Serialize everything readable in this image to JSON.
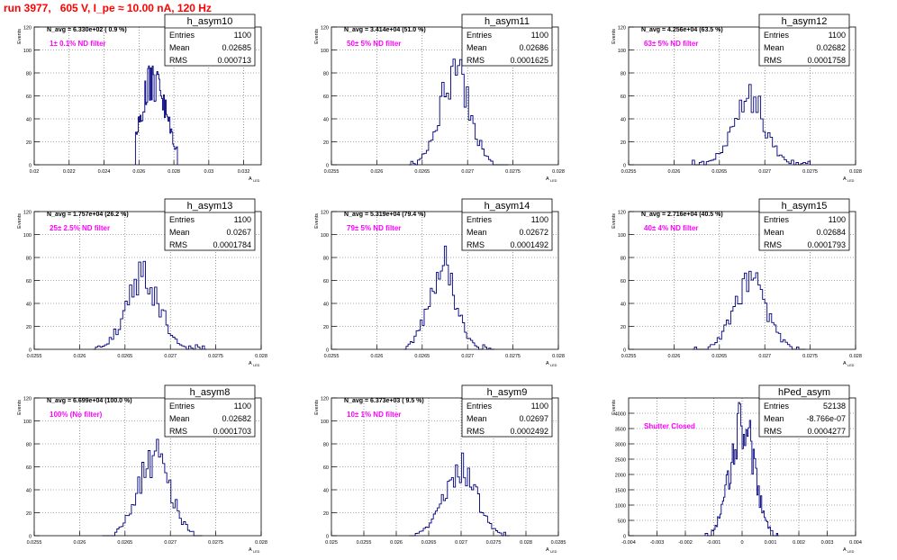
{
  "page_title": "run 3977,   605 V, I_pe ≈ 10.00 nA, 120 Hz",
  "colors": {
    "histogram": "#00007f",
    "annotation": "#ff00ff",
    "title": "#ff0000",
    "grid": "#555555"
  },
  "chart_data": [
    {
      "type": "bar",
      "name": "h_asym10",
      "ylabel": "Events",
      "xlabel": "A",
      "xlabel_sub": "LED",
      "navg": "N_avg = 6.330e+02 ( 0.9 %)",
      "filter": "1± 0.1% ND filter",
      "stats": [
        [
          "Entries",
          "1100"
        ],
        [
          "Mean",
          "0.02685"
        ],
        [
          "RMS",
          "0.000713"
        ]
      ],
      "xlim": [
        0.02,
        0.033
      ],
      "ylim": [
        0,
        120
      ],
      "xticks": [
        "0.02",
        "0.022",
        "0.024",
        "0.026",
        "0.028",
        "0.03",
        "0.032"
      ],
      "yticks": [
        "0",
        "20",
        "40",
        "60",
        "80",
        "100",
        "120"
      ],
      "hist": {
        "mean": 0.02685,
        "rms": 0.000713,
        "peak": 86,
        "range": [
          0.0258,
          0.0282
        ],
        "bins": 45,
        "seed": 1
      }
    },
    {
      "type": "bar",
      "name": "h_asym11",
      "ylabel": "Events",
      "xlabel": "A",
      "xlabel_sub": "LED",
      "navg": "N_avg = 3.414e+04 (51.0 %)",
      "filter": "50± 5% ND filter",
      "stats": [
        [
          "Entries",
          "1100"
        ],
        [
          "Mean",
          "0.02686"
        ],
        [
          "RMS",
          "0.0001625"
        ]
      ],
      "xlim": [
        0.0255,
        0.028
      ],
      "ylim": [
        0,
        120
      ],
      "xticks": [
        "0.0255",
        "0.026",
        "0.0265",
        "0.027",
        "0.0275",
        "0.028"
      ],
      "yticks": [
        "0",
        "20",
        "40",
        "60",
        "80",
        "100",
        "120"
      ],
      "hist": {
        "mean": 0.02686,
        "rms": 0.0001625,
        "peak": 92,
        "range": [
          0.02635,
          0.02745
        ],
        "bins": 45,
        "seed": 2
      }
    },
    {
      "type": "bar",
      "name": "h_asym12",
      "ylabel": "Events",
      "xlabel": "A",
      "xlabel_sub": "LED",
      "navg": "N_avg = 4.256e+04 (63.5 %)",
      "filter": "63± 5% ND filter",
      "stats": [
        [
          "Entries",
          "1100"
        ],
        [
          "Mean",
          "0.02682"
        ],
        [
          "RMS",
          "0.0001758"
        ]
      ],
      "xlim": [
        0.0255,
        0.028
      ],
      "ylim": [
        0,
        120
      ],
      "xticks": [
        "0.0255",
        "0.026",
        "0.0265",
        "0.027",
        "0.0275",
        "0.028"
      ],
      "yticks": [
        "0",
        "20",
        "40",
        "60",
        "80",
        "100",
        "120"
      ],
      "hist": {
        "mean": 0.02682,
        "rms": 0.0001758,
        "peak": 70,
        "range": [
          0.0262,
          0.0275
        ],
        "bins": 50,
        "seed": 3
      }
    },
    {
      "type": "bar",
      "name": "h_asym13",
      "ylabel": "Events",
      "xlabel": "A",
      "xlabel_sub": "LED",
      "navg": "N_avg = 1.757e+04 (26.2 %)",
      "filter": "25± 2.5% ND filter",
      "stats": [
        [
          "Entries",
          "1100"
        ],
        [
          "Mean",
          "0.0267"
        ],
        [
          "RMS",
          "0.0001784"
        ]
      ],
      "xlim": [
        0.0255,
        0.028
      ],
      "ylim": [
        0,
        120
      ],
      "xticks": [
        "0.0255",
        "0.026",
        "0.0265",
        "0.027",
        "0.0275",
        "0.028"
      ],
      "yticks": [
        "0",
        "20",
        "40",
        "60",
        "80",
        "100",
        "120"
      ],
      "hist": {
        "mean": 0.0267,
        "rms": 0.0001784,
        "peak": 76,
        "range": [
          0.02615,
          0.0274
        ],
        "bins": 50,
        "seed": 4
      }
    },
    {
      "type": "bar",
      "name": "h_asym14",
      "ylabel": "Events",
      "xlabel": "A",
      "xlabel_sub": "LED",
      "navg": "N_avg = 5.319e+04 (79.4 %)",
      "filter": "79± 5% ND filter",
      "stats": [
        [
          "Entries",
          "1100"
        ],
        [
          "Mean",
          "0.02672"
        ],
        [
          "RMS",
          "0.0001492"
        ]
      ],
      "xlim": [
        0.0255,
        0.028
      ],
      "ylim": [
        0,
        120
      ],
      "xticks": [
        "0.0255",
        "0.026",
        "0.0265",
        "0.027",
        "0.0275",
        "0.028"
      ],
      "yticks": [
        "0",
        "20",
        "40",
        "60",
        "80",
        "100",
        "120"
      ],
      "hist": {
        "mean": 0.02672,
        "rms": 0.0001492,
        "peak": 90,
        "range": [
          0.0263,
          0.0273
        ],
        "bins": 45,
        "seed": 5
      }
    },
    {
      "type": "bar",
      "name": "h_asym15",
      "ylabel": "Events",
      "xlabel": "A",
      "xlabel_sub": "LED",
      "navg": "N_avg = 2.716e+04 (40.5 %)",
      "filter": "40± 4% ND filter",
      "stats": [
        [
          "Entries",
          "1100"
        ],
        [
          "Mean",
          "0.02684"
        ],
        [
          "RMS",
          "0.0001793"
        ]
      ],
      "xlim": [
        0.0255,
        0.028
      ],
      "ylim": [
        0,
        120
      ],
      "xticks": [
        "0.0255",
        "0.026",
        "0.0265",
        "0.027",
        "0.0275",
        "0.028"
      ],
      "yticks": [
        "0",
        "20",
        "40",
        "60",
        "80",
        "100",
        "120"
      ],
      "hist": {
        "mean": 0.02684,
        "rms": 0.0001793,
        "peak": 68,
        "range": [
          0.0262,
          0.02745
        ],
        "bins": 50,
        "seed": 6
      }
    },
    {
      "type": "bar",
      "name": "h_asym8",
      "ylabel": "Events",
      "xlabel": "A",
      "xlabel_sub": "LED",
      "navg": "N_avg = 6.699e+04 (100.0 %)",
      "filter": "100% (No filter)",
      "stats": [
        [
          "Entries",
          "1100"
        ],
        [
          "Mean",
          "0.02682"
        ],
        [
          "RMS",
          "0.0001703"
        ]
      ],
      "xlim": [
        0.0255,
        0.028
      ],
      "ylim": [
        0,
        120
      ],
      "xticks": [
        "0.0255",
        "0.026",
        "0.0265",
        "0.027",
        "0.0275",
        "0.028"
      ],
      "yticks": [
        "0",
        "20",
        "40",
        "60",
        "80",
        "100",
        "120"
      ],
      "hist": {
        "mean": 0.02682,
        "rms": 0.0001703,
        "peak": 84,
        "range": [
          0.02625,
          0.02735
        ],
        "bins": 48,
        "seed": 7
      }
    },
    {
      "type": "bar",
      "name": "h_asym9",
      "ylabel": "Events",
      "xlabel": "A",
      "xlabel_sub": "LED",
      "navg": "N_avg = 6.373e+03 ( 9.5 %)",
      "filter": "10± 1% ND filter",
      "stats": [
        [
          "Entries",
          "1100"
        ],
        [
          "Mean",
          "0.02697"
        ],
        [
          "RMS",
          "0.0002492"
        ]
      ],
      "xlim": [
        0.025,
        0.0285
      ],
      "ylim": [
        0,
        120
      ],
      "xticks": [
        "0.025",
        "0.0255",
        "0.026",
        "0.0265",
        "0.027",
        "0.0275",
        "0.028",
        "0.0285"
      ],
      "yticks": [
        "0",
        "20",
        "40",
        "60",
        "80",
        "100",
        "120"
      ],
      "hist": {
        "mean": 0.02697,
        "rms": 0.0002492,
        "peak": 72,
        "range": [
          0.0262,
          0.02775
        ],
        "bins": 50,
        "seed": 8
      }
    },
    {
      "type": "bar",
      "name": "hPed_asym",
      "ylabel": "Events",
      "xlabel": "A",
      "xlabel_sub": "LED",
      "navg": "",
      "filter": "Shutter Closed",
      "stats": [
        [
          "Entries",
          "52138"
        ],
        [
          "Mean",
          "-8.766e-07"
        ],
        [
          "RMS",
          "0.0004277"
        ]
      ],
      "xlim": [
        -0.004,
        0.004
      ],
      "ylim": [
        0,
        4500
      ],
      "xticks": [
        "-0.004",
        "-0.003",
        "-0.002",
        "-0.001",
        "0",
        "0.001",
        "0.002",
        "0.003",
        "0.004"
      ],
      "yticks": [
        "0",
        "500",
        "1000",
        "1500",
        "2000",
        "2500",
        "3000",
        "3500",
        "4000"
      ],
      "hist": {
        "mean": 0.0,
        "rms": 0.00042,
        "peak": 4350,
        "range": [
          -0.0013,
          0.0013
        ],
        "bins": 60,
        "seed": 9
      }
    }
  ]
}
